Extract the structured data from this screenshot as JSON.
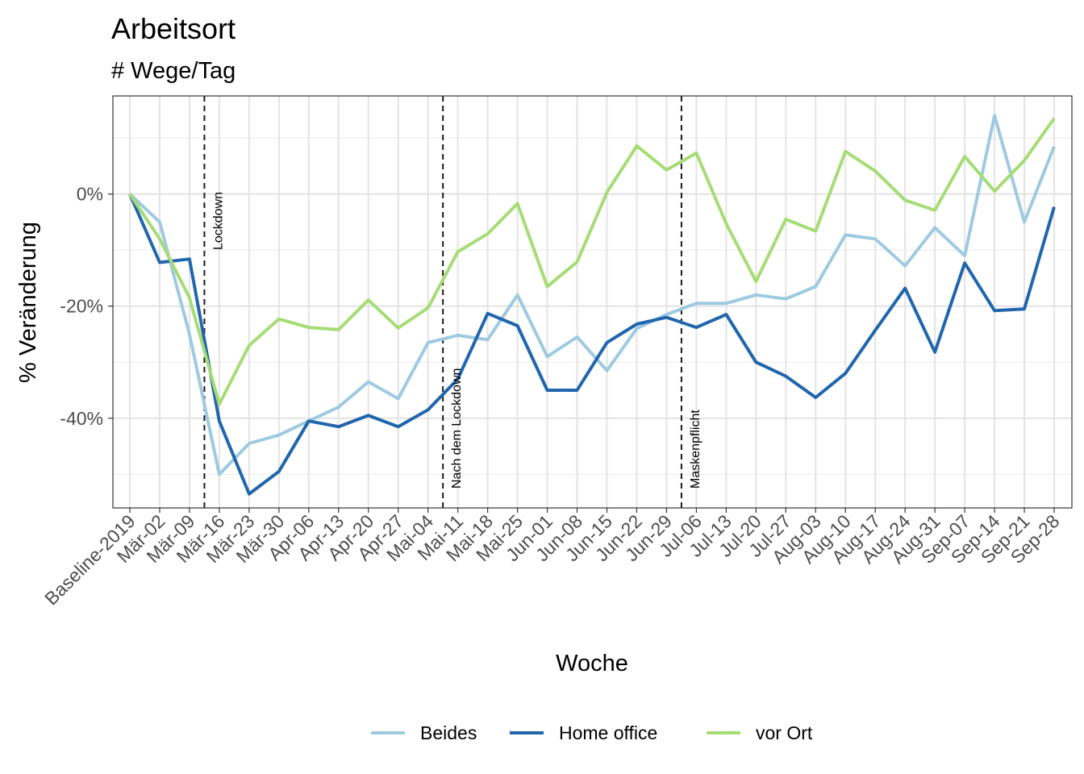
{
  "chart_data": {
    "type": "line",
    "title": "Arbeitsort",
    "subtitle": "# Wege/Tag",
    "xlabel": "Woche",
    "ylabel": "% Veränderung",
    "categories": [
      "Baseline-2019",
      "Mär-02",
      "Mär-09",
      "Mär-16",
      "Mär-23",
      "Mär-30",
      "Apr-06",
      "Apr-13",
      "Apr-20",
      "Apr-27",
      "Mai-04",
      "Mai-11",
      "Mai-18",
      "Mai-25",
      "Jun-01",
      "Jun-08",
      "Jun-15",
      "Jun-22",
      "Jun-29",
      "Jul-06",
      "Jul-13",
      "Jul-20",
      "Jul-27",
      "Aug-03",
      "Aug-10",
      "Aug-17",
      "Aug-24",
      "Aug-31",
      "Sep-07",
      "Sep-14",
      "Sep-21",
      "Sep-28"
    ],
    "y_ticks": [
      0,
      -20,
      -40
    ],
    "y_tick_labels": [
      "0%",
      "-20%",
      "-40%"
    ],
    "ylim": [
      -56,
      17.5
    ],
    "grid": true,
    "legend_position": "bottom",
    "series": [
      {
        "name": "Beides",
        "color": "#9ecae1",
        "values": [
          0,
          -5,
          -25,
          -50,
          -44.5,
          -43,
          -40.5,
          -38,
          -33.5,
          -36.5,
          -26.5,
          -25.2,
          -26,
          -18,
          -29,
          -25.5,
          -31.5,
          -24,
          -21.5,
          -19.5,
          -19.5,
          -18,
          -18.7,
          -16.5,
          -7.3,
          -8,
          -12.8,
          -6,
          -11,
          14,
          -5,
          8.5
        ]
      },
      {
        "name": "Home office",
        "color": "#2166ac",
        "values": [
          0,
          -12.2,
          -11.6,
          -40.5,
          -53.5,
          -49.5,
          -40.5,
          -41.5,
          -39.5,
          -41.5,
          -38.5,
          -33,
          -21.3,
          -23.5,
          -35,
          -35,
          -26.5,
          -23.2,
          -22,
          -23.8,
          -21.5,
          -30,
          -32.5,
          -36.3,
          -32,
          -24.3,
          -16.8,
          -28.2,
          -12.3,
          -20.8,
          -20.5,
          -2.3
        ]
      },
      {
        "name": "vor Ort",
        "color": "#a6dc75",
        "values": [
          0,
          -8,
          -18.5,
          -37.5,
          -27,
          -22.3,
          -23.8,
          -24.2,
          -18.9,
          -23.9,
          -20.3,
          -10.3,
          -7.1,
          -1.7,
          -16.5,
          -12.1,
          0.3,
          8.6,
          4.3,
          7.3,
          -5.3,
          -15.6,
          -4.5,
          -6.6,
          7.6,
          4.1,
          -1.1,
          -2.9,
          6.7,
          0.5,
          6,
          13.5
        ]
      }
    ],
    "annotations": [
      {
        "label": "Lockdown",
        "x_between": [
          "Mär-09",
          "Mär-16"
        ]
      },
      {
        "label": "Nach dem Lockdown",
        "x_between": [
          "Mai-04",
          "Mai-11"
        ]
      },
      {
        "label": "Maskenpflicht",
        "x_between": [
          "Jun-29",
          "Jul-06"
        ]
      }
    ]
  }
}
